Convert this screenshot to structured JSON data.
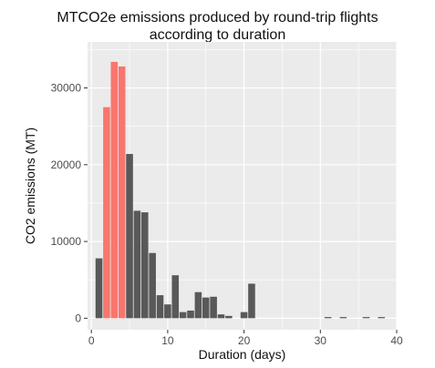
{
  "chart_data": {
    "type": "bar",
    "title_line1": "MTCO2e emissions produced by round-trip flights",
    "title_line2": "according to duration",
    "xlabel": "Duration (days)",
    "ylabel": "CO2 emissions (MT)",
    "xlim": [
      -0.5,
      40
    ],
    "ylim": [
      -1500,
      36000
    ],
    "xticks": [
      0,
      10,
      20,
      30,
      40
    ],
    "yticks": [
      0,
      10000,
      20000,
      30000
    ],
    "grid": true,
    "panel_background": "#ebebeb",
    "gridline_color": "#ffffff",
    "bar_color": "#595959",
    "highlight_color": "#f8766d",
    "bar_width": 1,
    "bars": [
      {
        "x": 1,
        "value": 7800,
        "highlight": false
      },
      {
        "x": 2,
        "value": 27500,
        "highlight": true
      },
      {
        "x": 3,
        "value": 33400,
        "highlight": true
      },
      {
        "x": 4,
        "value": 32800,
        "highlight": true
      },
      {
        "x": 5,
        "value": 21400,
        "highlight": false
      },
      {
        "x": 6,
        "value": 14000,
        "highlight": false
      },
      {
        "x": 7,
        "value": 13800,
        "highlight": false
      },
      {
        "x": 8,
        "value": 8500,
        "highlight": false
      },
      {
        "x": 9,
        "value": 3000,
        "highlight": false
      },
      {
        "x": 10,
        "value": 1800,
        "highlight": false
      },
      {
        "x": 11,
        "value": 5600,
        "highlight": false
      },
      {
        "x": 12,
        "value": 800,
        "highlight": false
      },
      {
        "x": 13,
        "value": 1000,
        "highlight": false
      },
      {
        "x": 14,
        "value": 3400,
        "highlight": false
      },
      {
        "x": 15,
        "value": 2700,
        "highlight": false
      },
      {
        "x": 16,
        "value": 2800,
        "highlight": false
      },
      {
        "x": 17,
        "value": 500,
        "highlight": false
      },
      {
        "x": 18,
        "value": 300,
        "highlight": false
      },
      {
        "x": 20,
        "value": 800,
        "highlight": false
      },
      {
        "x": 21,
        "value": 4500,
        "highlight": false
      },
      {
        "x": 31,
        "value": 150,
        "highlight": false
      },
      {
        "x": 33,
        "value": 150,
        "highlight": false
      },
      {
        "x": 36,
        "value": 150,
        "highlight": false
      },
      {
        "x": 38,
        "value": 150,
        "highlight": false
      }
    ]
  }
}
